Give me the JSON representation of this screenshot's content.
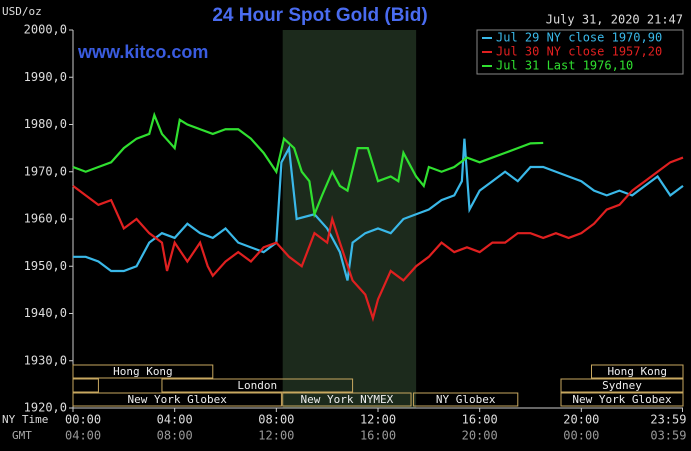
{
  "chart_data": {
    "type": "line",
    "title": "24 Hour Spot Gold (Bid)",
    "y_label": "USD/oz",
    "date_label": "July 31, 2020 21:47",
    "watermark": "www.kitco.com",
    "ylim": [
      1920,
      2000
    ],
    "yticks": [
      {
        "value": 1920,
        "label": "1920,0"
      },
      {
        "value": 1930,
        "label": "1930,0"
      },
      {
        "value": 1940,
        "label": "1940,0"
      },
      {
        "value": 1950,
        "label": "1950,0"
      },
      {
        "value": 1960,
        "label": "1960,0"
      },
      {
        "value": 1970,
        "label": "1970,0"
      },
      {
        "value": 1980,
        "label": "1980,0"
      },
      {
        "value": 1990,
        "label": "1990,0"
      },
      {
        "value": 2000,
        "label": "2000,0"
      }
    ],
    "xlim": [
      0,
      24
    ],
    "xticks": [
      {
        "value": 0,
        "label": "00:00"
      },
      {
        "value": 4,
        "label": "04:00"
      },
      {
        "value": 8,
        "label": "08:00"
      },
      {
        "value": 12,
        "label": "12:00"
      },
      {
        "value": 16,
        "label": "16:00"
      },
      {
        "value": 20,
        "label": "20:00"
      },
      {
        "value": 23.98,
        "label": "23:59"
      }
    ],
    "x_tick_labels_gmt": [
      "04:00",
      "08:00",
      "12:00",
      "16:00",
      "20:00",
      "00:00",
      "03:59"
    ],
    "x_row_label": "NY Time",
    "x_row_label_gmt": "GMT",
    "highlight_x": [
      8.25,
      13.5
    ],
    "sessions": [
      {
        "label": "Hong Kong",
        "start": 0,
        "end": 5.5,
        "row": 0
      },
      {
        "label": "Hong Kong",
        "start": 20.4,
        "end": 24,
        "row": 0
      },
      {
        "start": 0,
        "end": 1,
        "row": 1
      },
      {
        "label": "London",
        "start": 3.5,
        "end": 11,
        "row": 1
      },
      {
        "label": "Sydney",
        "start": 19.2,
        "end": 24,
        "row": 1
      },
      {
        "label": "New York Globex",
        "start": 0,
        "end": 8.2,
        "row": 2
      },
      {
        "label": "New York NYMEX",
        "start": 8.25,
        "end": 13.3,
        "row": 2
      },
      {
        "label": "NY Globex",
        "start": 13.4,
        "end": 17.5,
        "row": 2
      },
      {
        "label": "New York Globex",
        "start": 19.2,
        "end": 24,
        "row": 2
      }
    ],
    "series": [
      {
        "name": "Jul 29 NY close 1970,90",
        "color": "#3ab8e8",
        "x": [
          0,
          0.5,
          1,
          1.5,
          2,
          2.5,
          3,
          3.5,
          4,
          4.5,
          5,
          5.5,
          6,
          6.5,
          7,
          7.5,
          8,
          8.2,
          8.5,
          8.8,
          9.5,
          10,
          10.5,
          10.8,
          11,
          11.5,
          12,
          12.5,
          13,
          13.5,
          14,
          14.5,
          15,
          15.3,
          15.4,
          15.6,
          16,
          16.5,
          17,
          17.5,
          18,
          18.5,
          19,
          19.5,
          20,
          20.5,
          21,
          21.5,
          22,
          22.5,
          23,
          23.5,
          24
        ],
        "values": [
          1952,
          1952,
          1951,
          1949,
          1949,
          1950,
          1955,
          1957,
          1956,
          1959,
          1957,
          1956,
          1958,
          1955,
          1954,
          1953,
          1955,
          1972,
          1975,
          1960,
          1961,
          1958,
          1953,
          1947,
          1955,
          1957,
          1958,
          1957,
          1960,
          1961,
          1962,
          1964,
          1965,
          1968,
          1977,
          1962,
          1966,
          1968,
          1970,
          1968,
          1971,
          1971,
          1970,
          1969,
          1968,
          1966,
          1965,
          1966,
          1965,
          1967,
          1969,
          1965,
          1967
        ]
      },
      {
        "name": "Jul 30 NY close 1957,20",
        "color": "#e02020",
        "x": [
          0,
          0.5,
          1,
          1.5,
          2,
          2.5,
          3,
          3.5,
          3.7,
          4,
          4.5,
          5,
          5.3,
          5.5,
          6,
          6.5,
          7,
          7.5,
          8,
          8.5,
          9,
          9.5,
          10,
          10.2,
          10.5,
          11,
          11.5,
          11.8,
          12,
          12.5,
          13,
          13.5,
          14,
          14.5,
          15,
          15.5,
          16,
          16.5,
          17,
          17.5,
          18,
          18.5,
          19,
          19.5,
          20,
          20.5,
          21,
          21.5,
          22,
          22.5,
          23,
          23.5,
          24
        ],
        "values": [
          1967,
          1965,
          1963,
          1964,
          1958,
          1960,
          1957,
          1955,
          1949,
          1955,
          1951,
          1955,
          1950,
          1948,
          1951,
          1953,
          1951,
          1954,
          1955,
          1952,
          1950,
          1957,
          1955,
          1960,
          1955,
          1947,
          1944,
          1939,
          1943,
          1949,
          1947,
          1950,
          1952,
          1955,
          1953,
          1954,
          1953,
          1955,
          1955,
          1957,
          1957,
          1956,
          1957,
          1956,
          1957,
          1959,
          1962,
          1963,
          1966,
          1968,
          1970,
          1972,
          1973
        ]
      },
      {
        "name": "Jul 31 Last 1976,10",
        "color": "#30e030",
        "x": [
          0,
          0.5,
          1,
          1.5,
          2,
          2.5,
          3,
          3.2,
          3.5,
          4,
          4.2,
          4.5,
          5,
          5.5,
          6,
          6.5,
          7,
          7.5,
          8,
          8.3,
          8.7,
          9,
          9.3,
          9.5,
          9.8,
          10.2,
          10.5,
          10.8,
          11.2,
          11.6,
          12,
          12.5,
          12.8,
          13,
          13.5,
          13.8,
          14,
          14.5,
          15,
          15.5,
          16,
          16.5,
          17,
          17.5,
          18,
          18.5
        ],
        "values": [
          1971,
          1970,
          1971,
          1972,
          1975,
          1977,
          1978,
          1982,
          1978,
          1975,
          1981,
          1980,
          1979,
          1978,
          1979,
          1979,
          1977,
          1974,
          1970,
          1977,
          1975,
          1970,
          1968,
          1961,
          1965,
          1970,
          1967,
          1966,
          1975,
          1975,
          1968,
          1969,
          1968,
          1974,
          1969,
          1967,
          1971,
          1970,
          1971,
          1973,
          1972,
          1973,
          1974,
          1975,
          1976,
          1976.1
        ]
      }
    ]
  }
}
